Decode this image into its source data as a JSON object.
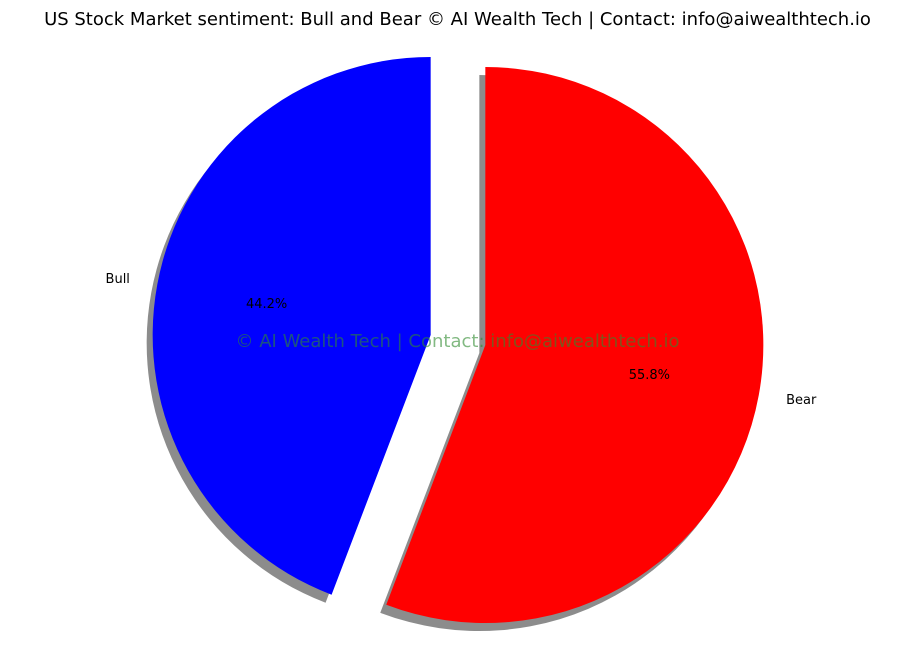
{
  "chart_data": {
    "type": "pie",
    "title": "US Stock Market sentiment: Bull and Bear © AI Wealth Tech | Contact: info@aiwealthtech.io",
    "categories": [
      "Bull",
      "Bear"
    ],
    "values": [
      44.2,
      55.8
    ],
    "percent_labels": [
      "44.2%",
      "55.8%"
    ],
    "colors": [
      "#0000ff",
      "#ff0000"
    ],
    "exploded": true,
    "shadow": true,
    "start_angle_deg": 90,
    "direction": "counterclockwise",
    "watermark": "© AI Wealth Tech | Contact: info@aiwealthtech.io",
    "legend": "none"
  }
}
